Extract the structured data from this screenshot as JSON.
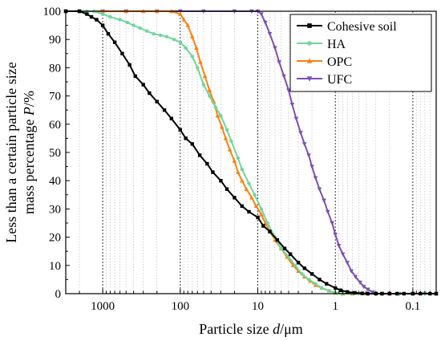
{
  "chart_data": {
    "type": "line",
    "x_scale": "log",
    "x_reversed": true,
    "xlim": [
      3000,
      0.05
    ],
    "ylim": [
      0,
      100
    ],
    "xlabel_parts": [
      "Particle size ",
      "d",
      "/μm"
    ],
    "ylabel_line1": "Less than a certain particle size",
    "ylabel_line2_parts": [
      "mass percentage ",
      "P",
      "/%"
    ],
    "x_ticks": [
      {
        "value": 1000,
        "label": "1000"
      },
      {
        "value": 100,
        "label": "100"
      },
      {
        "value": 10,
        "label": "10"
      },
      {
        "value": 1,
        "label": "1"
      },
      {
        "value": 0.1,
        "label": "0.1"
      }
    ],
    "y_ticks": [
      0,
      10,
      20,
      30,
      40,
      50,
      60,
      70,
      80,
      90,
      100
    ],
    "grid": "vertical dotted gridlines at log decades and minor ticks",
    "legend_position": "top-right",
    "series": [
      {
        "name": "Cohesive soil",
        "color": "#000000",
        "marker": "square",
        "x": [
          3000,
          2000,
          1600,
          1400,
          1200,
          1000,
          850,
          700,
          560,
          450,
          380,
          300,
          250,
          200,
          160,
          130,
          100,
          85,
          70,
          56,
          45,
          38,
          30,
          25,
          20,
          16,
          13,
          10,
          8.5,
          7,
          5.6,
          4.5,
          3.8,
          3,
          2.5,
          2,
          1.6,
          1.3,
          1,
          0.85,
          0.7,
          0.56,
          0.45,
          0.38,
          0.3,
          0.25,
          0.2,
          0.16,
          0.13,
          0.1,
          0.08,
          0.06,
          0.05
        ],
        "y": [
          100,
          100,
          99,
          98,
          97,
          95,
          92,
          89,
          85,
          81,
          77,
          74,
          71,
          68,
          65,
          62,
          58,
          55,
          53,
          49,
          46,
          43,
          40,
          37,
          34,
          31,
          29,
          27,
          24,
          22,
          19,
          16,
          14,
          11,
          9,
          7,
          5,
          3.5,
          2,
          1.2,
          0.6,
          0.3,
          0.1,
          0,
          0,
          0,
          0,
          0,
          0,
          0,
          0,
          0,
          0
        ]
      },
      {
        "name": "HA",
        "color": "#6fd69a",
        "marker": "circle",
        "x": [
          3000,
          2000,
          1600,
          1300,
          1000,
          800,
          600,
          480,
          400,
          330,
          270,
          220,
          180,
          150,
          120,
          100,
          85,
          70,
          60,
          50,
          42,
          35,
          30,
          25,
          22,
          18,
          16,
          13,
          11,
          9,
          7.5,
          6,
          5,
          4,
          3.3,
          2.7,
          2.2,
          1.8,
          1.5,
          1.2,
          1,
          0.8,
          0.6,
          0.5,
          0.4,
          0.3,
          0.25,
          0.2,
          0.15,
          0.1,
          0.07,
          0.05
        ],
        "y": [
          100,
          100,
          100,
          100,
          99,
          98,
          97,
          96,
          95,
          94,
          93,
          92,
          91.5,
          91,
          90,
          89,
          87,
          84,
          80,
          74,
          70,
          66,
          63,
          58,
          54,
          48,
          44,
          39,
          35,
          30,
          25,
          20,
          16,
          13,
          10,
          7,
          5,
          3.5,
          2,
          1,
          0.3,
          0,
          0,
          0,
          0,
          0,
          0,
          0,
          0,
          0,
          0,
          0
        ]
      },
      {
        "name": "OPC",
        "color": "#ff7f0e",
        "marker": "triangle-up",
        "x": [
          3000,
          2000,
          1000,
          500,
          300,
          200,
          130,
          100,
          90,
          80,
          70,
          62,
          55,
          48,
          42,
          37,
          33,
          29,
          26,
          23,
          20,
          18,
          16,
          14,
          12,
          10.5,
          9,
          8,
          7,
          6,
          5,
          4.2,
          3.5,
          3,
          2.5,
          2.1,
          1.8,
          1.5,
          1.2,
          1,
          0.8,
          0.6,
          0.4,
          0.2,
          0.1,
          0.05
        ],
        "y": [
          100,
          100,
          100,
          100,
          100,
          100,
          100,
          99,
          97,
          95,
          91,
          87,
          82,
          77,
          72,
          68,
          63,
          59,
          55,
          51,
          47,
          43,
          40,
          37,
          34,
          31,
          28,
          25,
          22,
          19,
          16,
          13,
          10,
          8,
          6,
          4.5,
          3,
          2,
          1,
          0.3,
          0,
          0,
          0,
          0,
          0,
          0
        ]
      },
      {
        "name": "UFC",
        "color": "#7b4fb3",
        "marker": "triangle-down",
        "x": [
          3000,
          2000,
          1000,
          500,
          200,
          100,
          50,
          20,
          12,
          10,
          9,
          8,
          7,
          6,
          5.3,
          4.6,
          4,
          3.6,
          3.2,
          2.8,
          2.5,
          2.2,
          2,
          1.8,
          1.6,
          1.4,
          1.25,
          1.1,
          1,
          0.9,
          0.8,
          0.7,
          0.62,
          0.55,
          0.48,
          0.43,
          0.38,
          0.33,
          0.3,
          0.25,
          0.2,
          0.15,
          0.1,
          0.07,
          0.05
        ],
        "y": [
          100,
          100,
          100,
          100,
          100,
          100,
          100,
          100,
          100,
          100,
          99,
          96,
          92,
          87,
          82,
          77,
          72,
          67,
          62,
          57,
          53,
          49,
          45,
          41,
          37,
          33,
          29,
          25,
          21,
          17,
          14,
          11,
          8,
          6,
          4,
          2.5,
          1.5,
          0.5,
          0,
          0,
          0,
          0,
          0,
          0,
          0
        ]
      }
    ]
  }
}
